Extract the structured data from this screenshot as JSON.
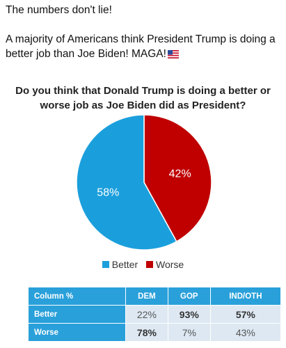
{
  "post": {
    "line1": "The numbers don't lie!",
    "line2": "A majority of Americans think President Trump is doing a better job than Joe Biden! MAGA!",
    "flag_icon": "us-flag-icon"
  },
  "colors": {
    "better": "#1b9fdc",
    "worse": "#c00000",
    "table_header": "#2aa0da",
    "table_cell": "#dde8f2"
  },
  "chart_data": {
    "type": "pie",
    "title": "Do you think that Donald Trump is doing a better or worse job as Joe Biden did as President?",
    "slices": [
      {
        "label": "Better",
        "value": 58,
        "display": "58%"
      },
      {
        "label": "Worse",
        "value": 42,
        "display": "42%"
      }
    ],
    "legend": [
      "Better",
      "Worse"
    ],
    "legend_position": "bottom"
  },
  "table": {
    "header": [
      "Column %",
      "DEM",
      "GOP",
      "IND/OTH"
    ],
    "rows": [
      {
        "label": "Better",
        "values": [
          "22%",
          "93%",
          "57%"
        ],
        "bold": [
          false,
          true,
          true
        ]
      },
      {
        "label": "Worse",
        "values": [
          "78%",
          "7%",
          "43%"
        ],
        "bold": [
          true,
          false,
          false
        ]
      }
    ]
  }
}
